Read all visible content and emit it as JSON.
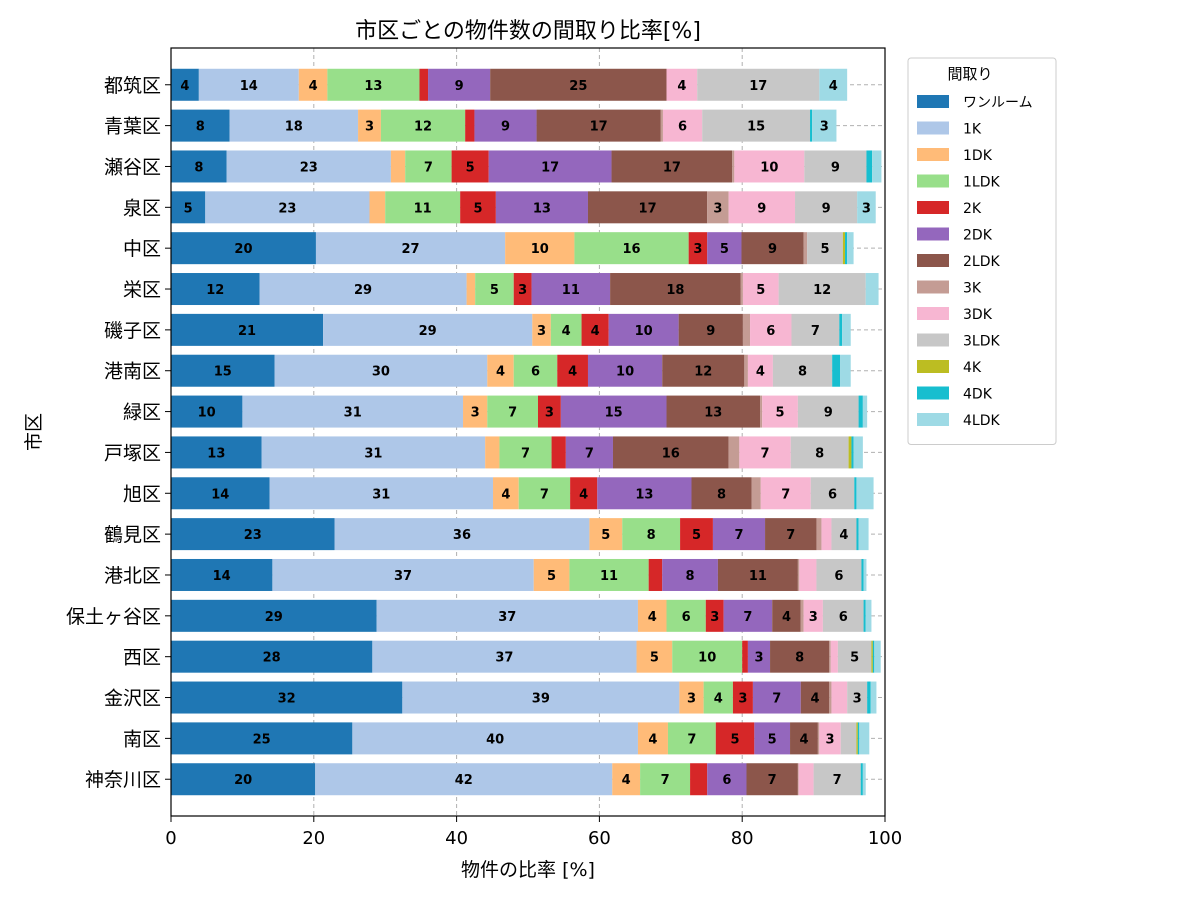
{
  "chart_data": {
    "type": "bar",
    "orientation": "horizontal",
    "stacked": true,
    "title": "市区ごとの物件数の間取り比率[%]",
    "xlabel": "物件の比率 [%]",
    "ylabel": "市区",
    "xlim": [
      0,
      100
    ],
    "xticks": [
      0,
      20,
      40,
      60,
      80,
      100
    ],
    "grid": true,
    "legend_title": "間取り",
    "legend_placement": "outside-top-right",
    "categories": [
      "都筑区",
      "青葉区",
      "瀬谷区",
      "泉区",
      "中区",
      "栄区",
      "磯子区",
      "港南区",
      "緑区",
      "戸塚区",
      "旭区",
      "鶴見区",
      "港北区",
      "保土ヶ谷区",
      "西区",
      "金沢区",
      "南区",
      "神奈川区"
    ],
    "series": [
      {
        "name": "ワンルーム",
        "color": "#1f77b4",
        "values": [
          3.9,
          8.2,
          7.8,
          4.8,
          20.3,
          12.4,
          21.3,
          14.5,
          10.0,
          12.7,
          13.8,
          22.9,
          14.2,
          28.8,
          28.2,
          32.4,
          25.4,
          20.2
        ]
      },
      {
        "name": "1K",
        "color": "#aec7e8",
        "values": [
          14.0,
          18.0,
          23.0,
          23.0,
          26.5,
          29.0,
          29.3,
          29.8,
          30.9,
          31.3,
          31.3,
          35.7,
          36.6,
          36.6,
          37.0,
          38.8,
          40.0,
          41.6
        ]
      },
      {
        "name": "1DK",
        "color": "#ffbb78",
        "values": [
          4.0,
          3.2,
          2.0,
          2.2,
          9.7,
          1.2,
          2.6,
          3.7,
          3.4,
          2.0,
          3.6,
          4.6,
          5.0,
          4.0,
          5.0,
          3.4,
          4.2,
          3.9
        ]
      },
      {
        "name": "1LDK",
        "color": "#98df8a",
        "values": [
          12.9,
          11.8,
          6.5,
          10.5,
          16.0,
          5.4,
          4.3,
          6.1,
          7.1,
          7.3,
          7.2,
          8.1,
          11.1,
          5.5,
          9.8,
          4.1,
          6.7,
          7.0
        ]
      },
      {
        "name": "2K",
        "color": "#d62728",
        "values": [
          1.2,
          1.3,
          5.2,
          5.0,
          2.6,
          2.5,
          3.8,
          4.3,
          3.2,
          2.0,
          3.8,
          4.6,
          1.9,
          2.5,
          0.8,
          2.8,
          5.4,
          2.4
        ]
      },
      {
        "name": "2DK",
        "color": "#9467bd",
        "values": [
          8.7,
          8.7,
          17.2,
          12.9,
          4.8,
          11.0,
          9.8,
          10.4,
          14.8,
          6.6,
          13.2,
          7.3,
          7.8,
          6.8,
          3.1,
          6.7,
          5.0,
          5.5
        ]
      },
      {
        "name": "2LDK",
        "color": "#8c564b",
        "values": [
          24.7,
          17.4,
          16.9,
          16.7,
          8.7,
          18.3,
          9.0,
          11.5,
          13.1,
          16.2,
          8.4,
          7.2,
          11.2,
          4.0,
          8.3,
          4.0,
          3.9,
          7.2
        ]
      },
      {
        "name": "3K",
        "color": "#c49c94",
        "values": [
          0,
          0.3,
          0.3,
          3.0,
          0.5,
          0.3,
          1.0,
          0.5,
          0.3,
          1.5,
          1.3,
          0.7,
          0.2,
          0.4,
          0.2,
          0.3,
          0.2,
          0.1
        ]
      },
      {
        "name": "3DK",
        "color": "#f7b6d2",
        "values": [
          4.3,
          5.5,
          9.8,
          9.3,
          0,
          5.0,
          5.8,
          3.5,
          5.0,
          7.2,
          7.0,
          1.4,
          2.4,
          2.7,
          1.0,
          2.2,
          3.0,
          2.1
        ]
      },
      {
        "name": "3LDK",
        "color": "#c7c7c7",
        "values": [
          17.1,
          15.1,
          8.7,
          8.7,
          5.0,
          12.2,
          6.7,
          8.3,
          8.5,
          8.1,
          6.1,
          3.5,
          6.3,
          5.7,
          4.7,
          2.8,
          2.2,
          6.6
        ]
      },
      {
        "name": "4K",
        "color": "#bcbd22",
        "values": [
          0,
          0,
          0,
          0,
          0.3,
          0,
          0,
          0,
          0,
          0.4,
          0,
          0,
          0,
          0,
          0.2,
          0,
          0.2,
          0
        ]
      },
      {
        "name": "4DK",
        "color": "#17becf",
        "values": [
          0,
          0.3,
          0.8,
          0,
          0.3,
          0,
          0.4,
          1.1,
          0.6,
          0.3,
          0.3,
          0.3,
          0.3,
          0.3,
          0.2,
          0.5,
          0.2,
          0.3
        ]
      },
      {
        "name": "4LDK",
        "color": "#9edae5",
        "values": [
          3.9,
          3.4,
          1.3,
          2.6,
          0.9,
          1.8,
          1.2,
          1.5,
          0.6,
          1.3,
          2.4,
          1.4,
          0.4,
          0.8,
          0.9,
          0.8,
          1.4,
          0.4
        ]
      }
    ]
  }
}
